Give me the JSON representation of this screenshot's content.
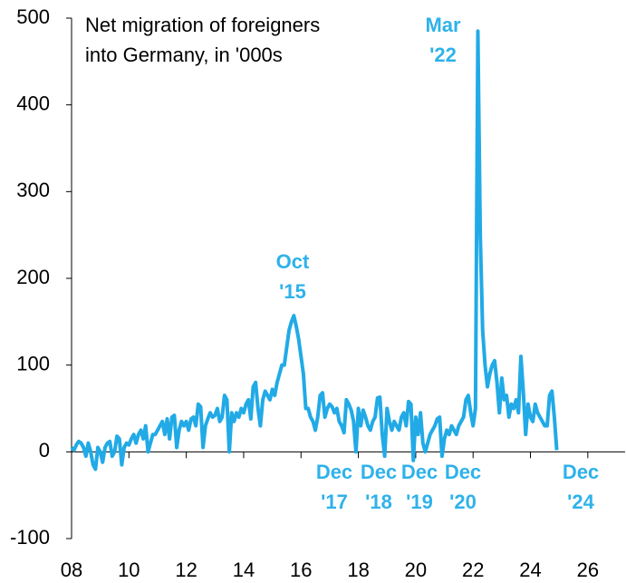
{
  "chart_data": {
    "type": "line",
    "title_lines": [
      "Net migration of foreigners",
      "into Germany, in '000s"
    ],
    "color": "#21aae6",
    "xlim": [
      2008,
      2027.3
    ],
    "ylim": [
      -100,
      500
    ],
    "yticks": [
      500,
      400,
      300,
      200,
      100,
      0,
      -100
    ],
    "xticks": [
      {
        "value": 2008,
        "label": "08"
      },
      {
        "value": 2010,
        "label": "10"
      },
      {
        "value": 2012,
        "label": "12"
      },
      {
        "value": 2014,
        "label": "14"
      },
      {
        "value": 2016,
        "label": "16"
      },
      {
        "value": 2018,
        "label": "18"
      },
      {
        "value": 2020,
        "label": "20"
      },
      {
        "value": 2022,
        "label": "22"
      },
      {
        "value": 2024,
        "label": "24"
      },
      {
        "value": 2026,
        "label": "26"
      }
    ],
    "annotations": [
      {
        "lines": [
          "Oct",
          "'15"
        ]
      },
      {
        "lines": [
          "Mar",
          "'22"
        ]
      },
      {
        "lines": [
          "Dec",
          "'17"
        ]
      },
      {
        "lines": [
          "Dec",
          "'18"
        ]
      },
      {
        "lines": [
          "Dec",
          "'19"
        ]
      },
      {
        "lines": [
          "Dec",
          "'20"
        ]
      },
      {
        "lines": [
          "Dec",
          "'24"
        ]
      }
    ],
    "x": [
      2008.0,
      2008.083,
      2008.167,
      2008.25,
      2008.333,
      2008.417,
      2008.5,
      2008.583,
      2008.667,
      2008.75,
      2008.833,
      2008.917,
      2009.0,
      2009.083,
      2009.167,
      2009.25,
      2009.333,
      2009.417,
      2009.5,
      2009.583,
      2009.667,
      2009.75,
      2009.833,
      2009.917,
      2010.0,
      2010.083,
      2010.167,
      2010.25,
      2010.333,
      2010.417,
      2010.5,
      2010.583,
      2010.667,
      2010.75,
      2010.833,
      2010.917,
      2011.0,
      2011.083,
      2011.167,
      2011.25,
      2011.333,
      2011.417,
      2011.5,
      2011.583,
      2011.667,
      2011.75,
      2011.833,
      2011.917,
      2012.0,
      2012.083,
      2012.167,
      2012.25,
      2012.333,
      2012.417,
      2012.5,
      2012.583,
      2012.667,
      2012.75,
      2012.833,
      2012.917,
      2013.0,
      2013.083,
      2013.167,
      2013.25,
      2013.333,
      2013.417,
      2013.5,
      2013.583,
      2013.667,
      2013.75,
      2013.833,
      2013.917,
      2014.0,
      2014.083,
      2014.167,
      2014.25,
      2014.333,
      2014.417,
      2014.5,
      2014.583,
      2014.667,
      2014.75,
      2014.833,
      2014.917,
      2015.0,
      2015.083,
      2015.167,
      2015.25,
      2015.333,
      2015.417,
      2015.5,
      2015.583,
      2015.667,
      2015.75,
      2015.833,
      2015.917,
      2016.0,
      2016.083,
      2016.167,
      2016.25,
      2016.333,
      2016.417,
      2016.5,
      2016.583,
      2016.667,
      2016.75,
      2016.833,
      2016.917,
      2017.0,
      2017.083,
      2017.167,
      2017.25,
      2017.333,
      2017.417,
      2017.5,
      2017.583,
      2017.667,
      2017.75,
      2017.833,
      2017.917,
      2018.0,
      2018.083,
      2018.167,
      2018.25,
      2018.333,
      2018.417,
      2018.5,
      2018.583,
      2018.667,
      2018.75,
      2018.833,
      2018.917,
      2019.0,
      2019.083,
      2019.167,
      2019.25,
      2019.333,
      2019.417,
      2019.5,
      2019.583,
      2019.667,
      2019.75,
      2019.833,
      2019.917,
      2020.0,
      2020.083,
      2020.167,
      2020.25,
      2020.333,
      2020.417,
      2020.5,
      2020.583,
      2020.667,
      2020.75,
      2020.833,
      2020.917,
      2021.0,
      2021.083,
      2021.167,
      2021.25,
      2021.333,
      2021.417,
      2021.5,
      2021.583,
      2021.667,
      2021.75,
      2021.833,
      2021.917,
      2022.0,
      2022.083,
      2022.167,
      2022.25,
      2022.333,
      2022.417,
      2022.5,
      2022.583,
      2022.667,
      2022.75,
      2022.833,
      2022.917,
      2023.0,
      2023.083,
      2023.167,
      2023.25,
      2023.333,
      2023.417,
      2023.5,
      2023.583,
      2023.667,
      2023.75,
      2023.833,
      2023.917,
      2024.0,
      2024.083,
      2024.167,
      2024.25,
      2024.333,
      2024.417,
      2024.5,
      2024.583,
      2024.667,
      2024.75,
      2024.833,
      2024.917
    ],
    "values": [
      5,
      2,
      8,
      12,
      10,
      5,
      -5,
      10,
      0,
      -15,
      -20,
      5,
      0,
      -12,
      5,
      10,
      12,
      -5,
      0,
      18,
      15,
      -15,
      5,
      10,
      8,
      15,
      20,
      10,
      20,
      25,
      15,
      30,
      0,
      10,
      20,
      20,
      25,
      30,
      35,
      20,
      38,
      15,
      40,
      42,
      5,
      25,
      35,
      30,
      35,
      25,
      38,
      40,
      30,
      55,
      52,
      5,
      30,
      38,
      45,
      40,
      42,
      50,
      35,
      40,
      65,
      60,
      0,
      45,
      35,
      45,
      40,
      50,
      45,
      55,
      60,
      38,
      75,
      80,
      50,
      30,
      60,
      70,
      65,
      60,
      72,
      65,
      80,
      90,
      100,
      100,
      120,
      140,
      150,
      157,
      145,
      130,
      110,
      90,
      50,
      50,
      40,
      35,
      25,
      40,
      65,
      68,
      40,
      50,
      55,
      52,
      45,
      50,
      35,
      30,
      22,
      60,
      55,
      48,
      35,
      0,
      50,
      30,
      48,
      40,
      30,
      25,
      35,
      40,
      62,
      63,
      20,
      -5,
      50,
      35,
      25,
      35,
      30,
      25,
      40,
      45,
      30,
      58,
      55,
      -10,
      40,
      20,
      45,
      10,
      0,
      10,
      20,
      25,
      30,
      38,
      40,
      -5,
      15,
      25,
      20,
      30,
      25,
      20,
      30,
      35,
      40,
      60,
      65,
      45,
      30,
      50,
      485,
      250,
      140,
      100,
      75,
      90,
      100,
      105,
      80,
      45,
      85,
      60,
      65,
      40,
      55,
      50,
      60,
      45,
      110,
      70,
      20,
      55,
      40,
      35,
      55,
      45,
      40,
      35,
      30,
      30,
      65,
      70,
      40,
      2
    ]
  }
}
